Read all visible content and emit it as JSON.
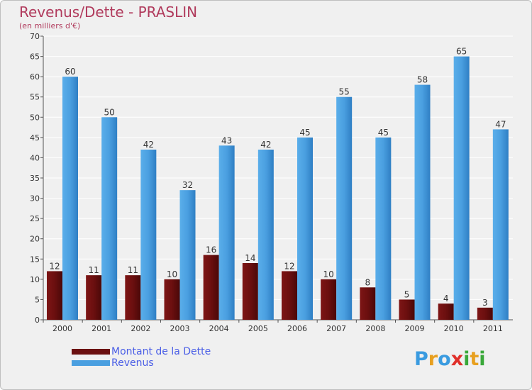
{
  "chart_data": {
    "type": "bar",
    "title": "Revenus/Dette - PRASLIN",
    "subtitle": "(en milliers d'€)",
    "categories": [
      "2000",
      "2001",
      "2002",
      "2003",
      "2004",
      "2005",
      "2006",
      "2007",
      "2008",
      "2009",
      "2010",
      "2011"
    ],
    "series": [
      {
        "name": "Montant de la Dette",
        "color": "#6b0f0f",
        "values": [
          12,
          11,
          11,
          10,
          16,
          14,
          12,
          10,
          8,
          5,
          4,
          3
        ]
      },
      {
        "name": "Revenus",
        "color": "#4a9fe0",
        "values": [
          60,
          50,
          42,
          32,
          43,
          42,
          45,
          55,
          45,
          58,
          65,
          47
        ]
      }
    ],
    "ylim": [
      0,
      70
    ],
    "yticks": [
      0,
      5,
      10,
      15,
      20,
      25,
      30,
      35,
      40,
      45,
      50,
      55,
      60,
      65,
      70
    ],
    "grid": true,
    "legend_position": "bottom-left"
  },
  "logo": {
    "letters": [
      {
        "ch": "P",
        "color": "#3a9be0"
      },
      {
        "ch": "r",
        "color": "#e8a020"
      },
      {
        "ch": "o",
        "color": "#3a9be0"
      },
      {
        "ch": "x",
        "color": "#e0302a"
      },
      {
        "ch": "i",
        "color": "#3aa83a"
      },
      {
        "ch": "t",
        "color": "#e8a020"
      },
      {
        "ch": "i",
        "color": "#3aa83a"
      }
    ]
  }
}
